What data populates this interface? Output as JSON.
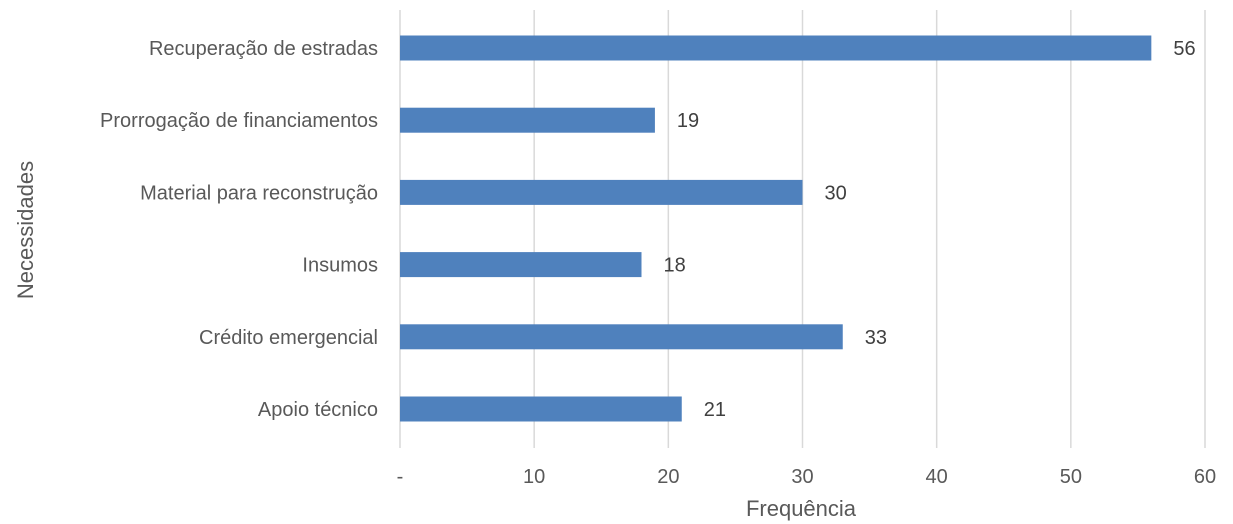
{
  "chart_data": {
    "type": "bar",
    "orientation": "horizontal",
    "categories": [
      "Recuperação de estradas",
      "Prorrogação de financiamentos",
      "Material para reconstrução",
      "Insumos",
      "Crédito emergencial",
      "Apoio técnico"
    ],
    "values": [
      56,
      19,
      30,
      18,
      33,
      21
    ],
    "data_labels": [
      "56",
      "19",
      "30",
      "18",
      "33",
      "21"
    ],
    "xlabel": "Frequência",
    "ylabel": "Necessidades",
    "xlim": [
      0,
      60
    ],
    "ticks": [
      0,
      10,
      20,
      30,
      40,
      50,
      60
    ],
    "tick_labels": [
      "-",
      "10",
      "20",
      "30",
      "40",
      "50",
      "60"
    ],
    "grid": "vertical",
    "legend": "none",
    "bar_color": "#4f81bd"
  }
}
